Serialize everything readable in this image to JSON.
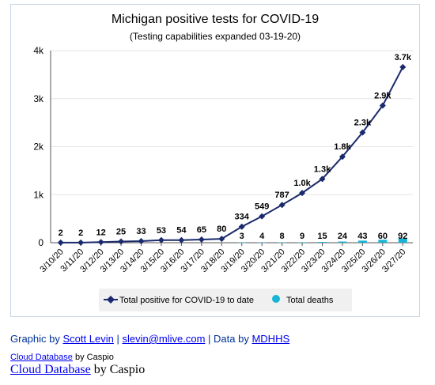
{
  "chart_data": {
    "type": "line",
    "title": "Michigan positive tests for COVID-19",
    "subtitle": "(Testing capabilities expanded 03-19-20)",
    "categories": [
      "3/10/20",
      "3/11/20",
      "3/12/20",
      "3/13/20",
      "3/14/20",
      "3/15/20",
      "3/16/20",
      "3/17/20",
      "3/18/20",
      "3/19/20",
      "3/20/20",
      "3/21/20",
      "3/22/20",
      "3/23/20",
      "3/24/20",
      "3/25/20",
      "3/26/20",
      "3/27/20"
    ],
    "yticks": [
      0,
      1000,
      2000,
      3000,
      4000
    ],
    "ytick_labels": [
      "0",
      "1k",
      "2k",
      "3k",
      "4k"
    ],
    "ylim": [
      0,
      4000
    ],
    "grid": true,
    "legend_position": "bottom",
    "series": [
      {
        "name": "Total positive for COVID-19 to date",
        "kind": "line",
        "color": "#1a2a6c",
        "values": [
          2,
          2,
          12,
          25,
          33,
          53,
          54,
          65,
          80,
          334,
          549,
          787,
          1035,
          1328,
          1791,
          2295,
          2856,
          3657
        ],
        "labels": [
          "2",
          "2",
          "12",
          "25",
          "33",
          "53",
          "54",
          "65",
          "80",
          "334",
          "549",
          "787",
          "1.0k",
          "1.3k",
          "1.8k",
          "2.3k",
          "2.9k",
          "3.7k"
        ]
      },
      {
        "name": "Total deaths",
        "kind": "bar",
        "color": "#17b4d6",
        "values": [
          null,
          null,
          null,
          null,
          null,
          null,
          null,
          null,
          null,
          3,
          4,
          8,
          9,
          15,
          24,
          43,
          60,
          92
        ],
        "labels": [
          "",
          "",
          "",
          "",
          "",
          "",
          "",
          "",
          "",
          "3",
          "4",
          "8",
          "9",
          "15",
          "24",
          "43",
          "60",
          "92"
        ]
      }
    ]
  },
  "credits": {
    "prefix": "Graphic by",
    "author": "Scott Levin",
    "sep1": "|",
    "email": "slevin@mlive.com",
    "sep2": "| Data by",
    "source": "MDHHS"
  },
  "caspio_small": {
    "link": "Cloud Database",
    "rest": "by Caspio"
  },
  "caspio_large": {
    "link": "Cloud Database",
    "rest": "by Caspio"
  }
}
